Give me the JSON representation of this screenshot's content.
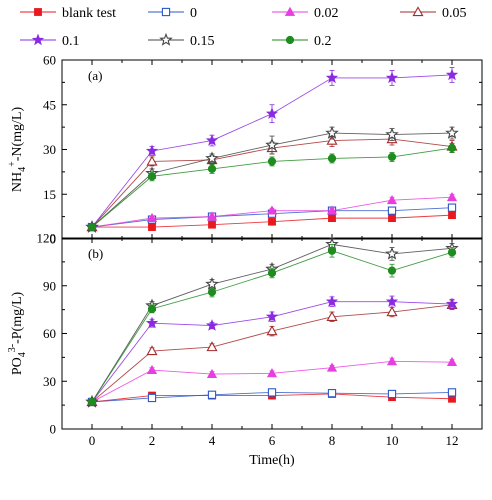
{
  "chart_data": [
    {
      "type": "line",
      "panel_label": "(a)",
      "ylabel": {
        "main": "NH",
        "sub": "4",
        "sup": "+",
        "rest": "-N(mg/L)"
      },
      "xlabel": "",
      "x": [
        0,
        2,
        4,
        6,
        8,
        10,
        12
      ],
      "xticks": [
        "0",
        "2",
        "4",
        "6",
        "8",
        "10",
        "12"
      ],
      "xlim": [
        -1,
        13
      ],
      "ylim": [
        0,
        60
      ],
      "yticks": [
        0,
        15,
        30,
        45,
        60
      ],
      "grid": false,
      "series": [
        {
          "name": "blank test",
          "color": "#e8191f",
          "marker": "square-filled",
          "values": [
            4,
            4,
            4.8,
            5.8,
            7,
            7,
            8
          ],
          "err": [
            0.4,
            0.4,
            0.5,
            0.5,
            0.6,
            0.6,
            0.6
          ]
        },
        {
          "name": "0",
          "color": "#2b57c9",
          "marker": "square-open",
          "values": [
            4,
            6.5,
            7.5,
            8.5,
            9.5,
            9.5,
            10.5
          ],
          "err": [
            0.5,
            0.5,
            0.6,
            0.6,
            0.7,
            0.7,
            0.8
          ]
        },
        {
          "name": "0.02",
          "color": "#e83ee0",
          "marker": "triangle-filled",
          "values": [
            4,
            7,
            7.5,
            9.5,
            9.5,
            13,
            14
          ],
          "err": [
            0.5,
            0.6,
            0.6,
            0.8,
            0.8,
            1,
            1
          ]
        },
        {
          "name": "0.05",
          "color": "#a52a2a",
          "marker": "triangle-open",
          "values": [
            4,
            26,
            26.5,
            30.5,
            33,
            33.5,
            31
          ],
          "err": [
            0.6,
            1.5,
            1.5,
            2,
            2,
            2,
            2
          ]
        },
        {
          "name": "0.1",
          "color": "#8a2be2",
          "marker": "star-filled",
          "values": [
            4,
            29.5,
            33,
            42,
            54,
            54,
            55
          ],
          "err": [
            0.6,
            1.5,
            1.8,
            3,
            2.5,
            2.5,
            2.5
          ]
        },
        {
          "name": "0.15",
          "color": "#444444",
          "marker": "star-open",
          "values": [
            4,
            22,
            27,
            31.5,
            35.5,
            35,
            35.5
          ],
          "err": [
            0.6,
            1.5,
            1.5,
            3,
            2,
            2,
            2
          ]
        },
        {
          "name": "0.2",
          "color": "#1e8c1e",
          "marker": "circle-filled",
          "values": [
            4,
            21,
            23.5,
            26,
            27,
            27.5,
            30.5
          ],
          "err": [
            0.6,
            1.5,
            1.5,
            1.5,
            1.5,
            1.5,
            1.5
          ]
        }
      ]
    },
    {
      "type": "line",
      "panel_label": "(b)",
      "ylabel": {
        "main": "PO",
        "sub": "4",
        "sup": "3-",
        "rest": "-P(mg/L)"
      },
      "xlabel": "Time(h)",
      "x": [
        0,
        2,
        4,
        6,
        8,
        10,
        12
      ],
      "xticks": [
        "0",
        "2",
        "4",
        "6",
        "8",
        "10",
        "12"
      ],
      "xlim": [
        -1,
        13
      ],
      "ylim": [
        0,
        120
      ],
      "yticks": [
        0,
        30,
        60,
        90,
        120
      ],
      "grid": false,
      "series": [
        {
          "name": "blank test",
          "color": "#e8191f",
          "marker": "square-filled",
          "values": [
            17,
            21,
            21,
            21,
            22,
            20,
            19
          ],
          "err": [
            0.8,
            1,
            1,
            1,
            1,
            1,
            1
          ]
        },
        {
          "name": "0",
          "color": "#2b57c9",
          "marker": "square-open",
          "values": [
            17,
            19.5,
            21.5,
            23,
            22.5,
            22,
            23
          ],
          "err": [
            0.8,
            1,
            1,
            1,
            1,
            1,
            1
          ]
        },
        {
          "name": "0.02",
          "color": "#e83ee0",
          "marker": "triangle-filled",
          "values": [
            17,
            37,
            34.5,
            35,
            38.5,
            42.5,
            42
          ],
          "err": [
            0.8,
            1.5,
            1.5,
            1.5,
            1.5,
            2,
            1.5
          ]
        },
        {
          "name": "0.05",
          "color": "#a52a2a",
          "marker": "triangle-open",
          "values": [
            17,
            49,
            51.5,
            61.5,
            70.5,
            73.5,
            78
          ],
          "err": [
            0.8,
            2,
            2,
            3,
            3,
            3,
            3
          ]
        },
        {
          "name": "0.1",
          "color": "#8a2be2",
          "marker": "star-filled",
          "values": [
            17,
            66.5,
            65,
            70.5,
            80,
            80,
            78.5
          ],
          "err": [
            0.8,
            2.5,
            2,
            3,
            3,
            3.5,
            3
          ]
        },
        {
          "name": "0.15",
          "color": "#444444",
          "marker": "star-open",
          "values": [
            17,
            77.5,
            91,
            100.5,
            116,
            110,
            113.5
          ],
          "err": [
            0.8,
            2.5,
            3,
            3,
            4,
            4,
            3
          ]
        },
        {
          "name": "0.2",
          "color": "#1e8c1e",
          "marker": "circle-filled",
          "values": [
            17,
            75.5,
            86,
            98,
            112,
            99.5,
            111
          ],
          "err": [
            0.8,
            2.5,
            3,
            3,
            4,
            4,
            3
          ]
        }
      ]
    }
  ],
  "legend": {
    "placement": "top",
    "rows": 2,
    "items": [
      "blank test",
      "0",
      "0.02",
      "0.05",
      "0.1",
      "0.15",
      "0.2"
    ]
  }
}
